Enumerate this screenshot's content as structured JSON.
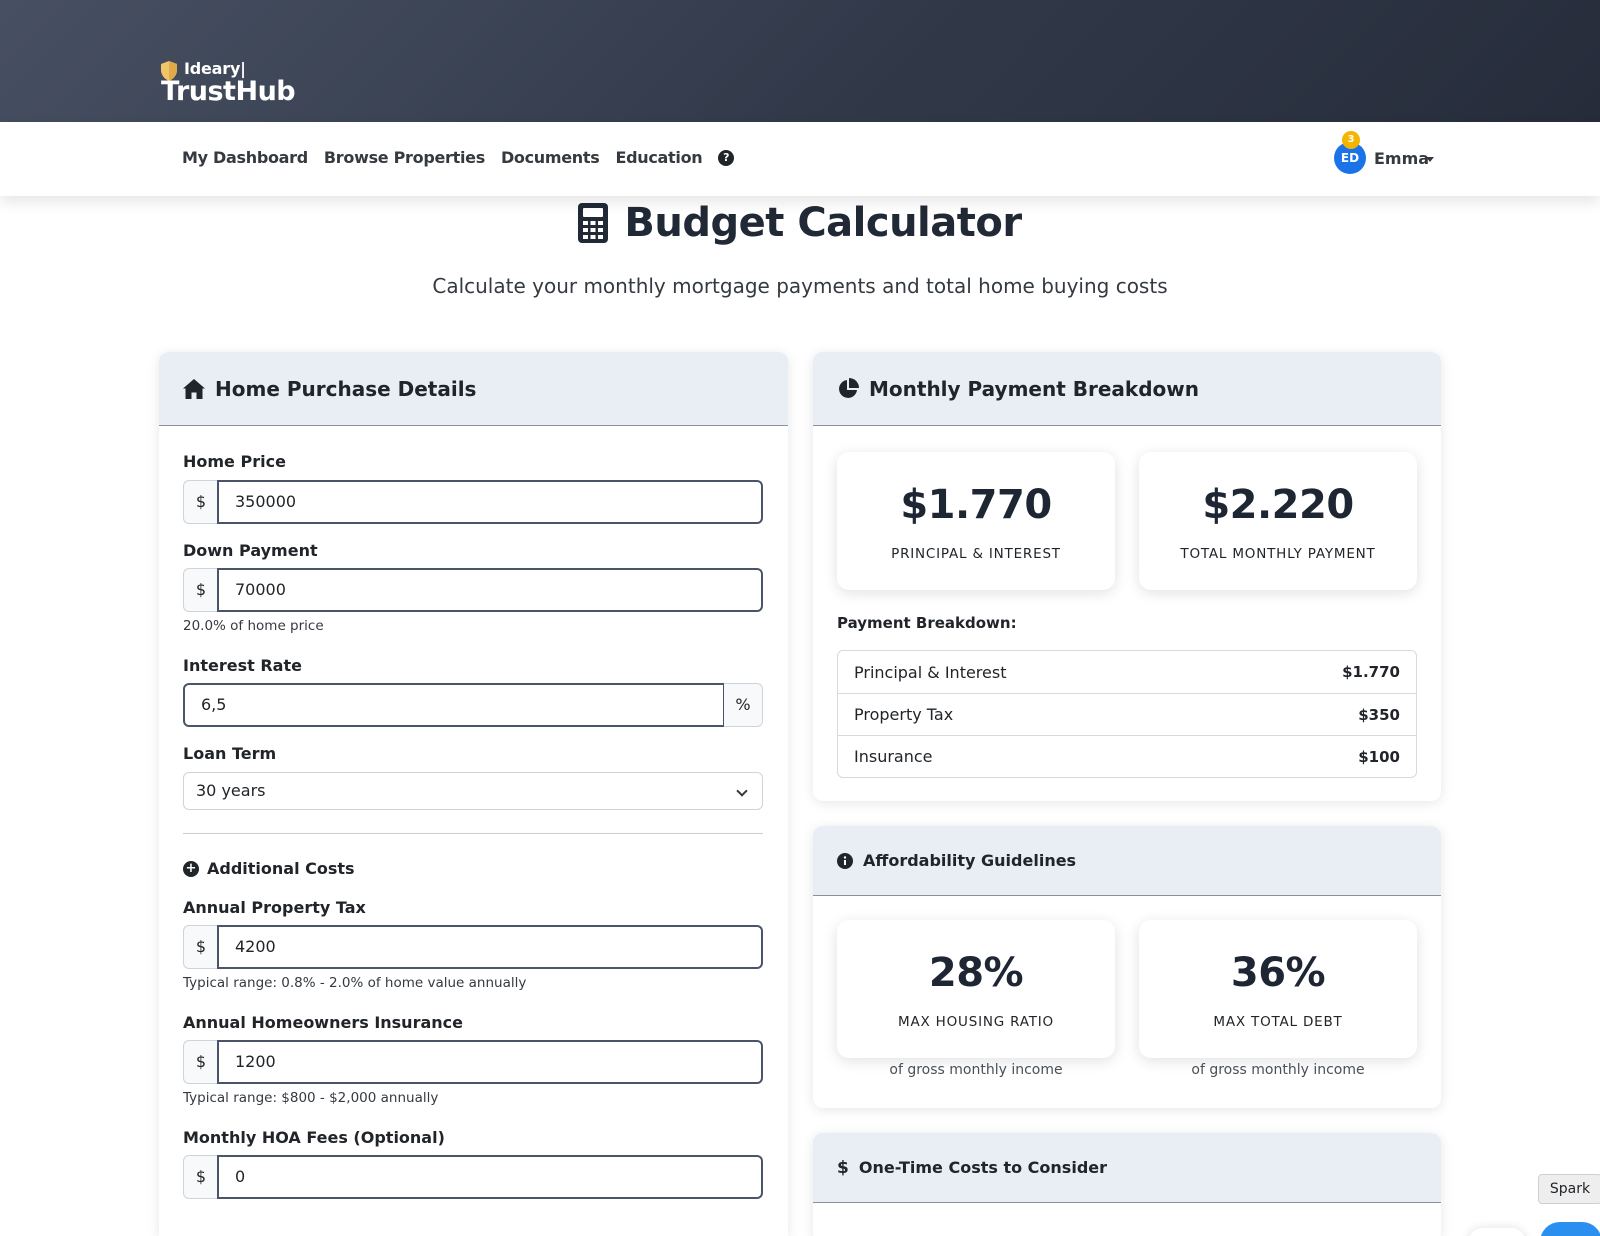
{
  "brand": {
    "small": "Ideary|",
    "big": "TrustHub"
  },
  "nav": {
    "links": [
      "My Dashboard",
      "Browse Properties",
      "Documents",
      "Education"
    ],
    "help_glyph": "?",
    "user": {
      "initials": "ED",
      "notifications": "3",
      "name": "Emma"
    }
  },
  "page": {
    "title": "Budget Calculator",
    "subtitle": "Calculate your monthly mortgage payments and total home buying costs"
  },
  "purchase": {
    "heading": "Home Purchase Details",
    "home_price": {
      "label": "Home Price",
      "prefix": "$",
      "value": "350000"
    },
    "down_payment": {
      "label": "Down Payment",
      "prefix": "$",
      "value": "70000",
      "help": "20.0% of home price"
    },
    "interest_rate": {
      "label": "Interest Rate",
      "value": "6,5",
      "suffix": "%"
    },
    "loan_term": {
      "label": "Loan Term",
      "value": "30 years"
    },
    "additional_costs": "Additional Costs",
    "property_tax": {
      "label": "Annual Property Tax",
      "prefix": "$",
      "value": "4200",
      "help": "Typical range: 0.8% - 2.0% of home value annually"
    },
    "insurance": {
      "label": "Annual Homeowners Insurance",
      "prefix": "$",
      "value": "1200",
      "help": "Typical range: $800 - $2,000 annually"
    },
    "hoa": {
      "label": "Monthly HOA Fees (Optional)",
      "prefix": "$",
      "value": "0"
    }
  },
  "breakdown": {
    "heading": "Monthly Payment Breakdown",
    "principal_interest": {
      "value": "$1.770",
      "caption": "PRINCIPAL & INTEREST"
    },
    "total_monthly": {
      "value": "$2.220",
      "caption": "TOTAL MONTHLY PAYMENT"
    },
    "label": "Payment Breakdown:",
    "rows": [
      {
        "name": "Principal & Interest",
        "value": "$1.770"
      },
      {
        "name": "Property Tax",
        "value": "$350"
      },
      {
        "name": "Insurance",
        "value": "$100"
      }
    ]
  },
  "affordability": {
    "heading": "Affordability Guidelines",
    "housing": {
      "value": "28%",
      "caption": "MAX HOUSING RATIO",
      "note": "of gross monthly income"
    },
    "debt": {
      "value": "36%",
      "caption": "MAX TOTAL DEBT",
      "note": "of gross monthly income"
    }
  },
  "one_time": {
    "heading": "One-Time Costs to Consider"
  },
  "spark": {
    "tooltip": "Spark"
  },
  "colors": {
    "header_dark": "#313949",
    "card_head": "#e9edf4",
    "avatar": "#1a73e8",
    "badge": "#f5b400",
    "shield": "#f2c46a"
  }
}
